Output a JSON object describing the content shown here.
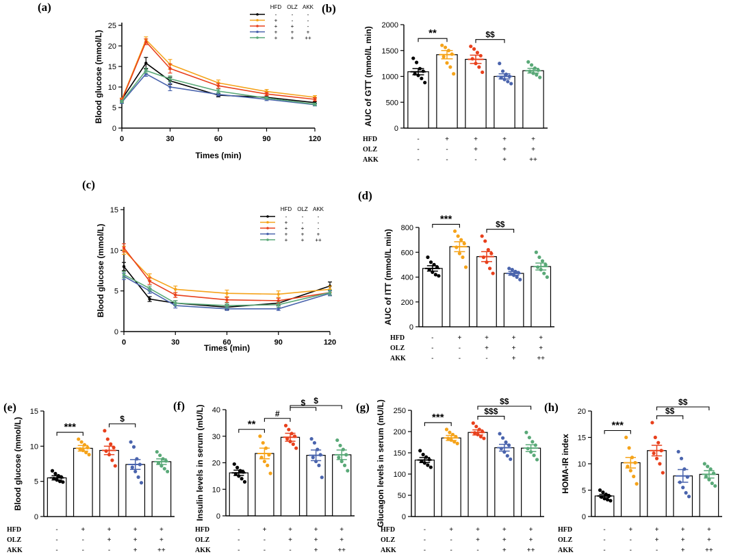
{
  "colors": {
    "HFD-/OLZ-/AKK-": "#000000",
    "HFD+": "#f5a31a",
    "HFD+OLZ+": "#e8401c",
    "HFD+OLZ+AKK+": "#4a64ad",
    "HFD+OLZ+AKK++": "#5aa978"
  },
  "treatment_table": {
    "row_labels": [
      "HFD",
      "OLZ",
      "AKK"
    ],
    "columns": [
      [
        "-",
        "-",
        "-"
      ],
      [
        "+",
        "-",
        "-"
      ],
      [
        "+",
        "+",
        "-"
      ],
      [
        "+",
        "+",
        "+"
      ],
      [
        "+",
        "+",
        "++"
      ]
    ]
  },
  "legend": {
    "headers": [
      "HFD",
      "OLZ",
      "AKK"
    ]
  },
  "chart_data": [
    {
      "panel": "(a)",
      "type": "line",
      "xlabel": "Times (min)",
      "ylabel": "Blood glucose (mmol/L)",
      "x": [
        0,
        15,
        30,
        60,
        90,
        120
      ],
      "xticks": [
        "0",
        "30",
        "60",
        "90",
        "120"
      ],
      "xlim": [
        0,
        120
      ],
      "ylim": [
        0,
        25
      ],
      "yticks": [
        "0",
        "5",
        "10",
        "15",
        "20",
        "25"
      ],
      "series": [
        {
          "name": "HFD-/OLZ-/AKK-",
          "values": [
            7.0,
            15.8,
            11.5,
            8.0,
            7.5,
            6.2
          ],
          "errors": [
            0.3,
            1.4,
            0.9,
            0.4,
            0.3,
            0.3
          ]
        },
        {
          "name": "HFD+",
          "values": [
            7.0,
            21.5,
            15.5,
            11.0,
            8.9,
            7.5
          ],
          "errors": [
            0.3,
            0.7,
            1.2,
            0.7,
            0.5,
            0.4
          ]
        },
        {
          "name": "HFD+OLZ+",
          "values": [
            6.8,
            21.0,
            14.5,
            10.3,
            8.3,
            7.0
          ],
          "errors": [
            0.3,
            0.7,
            1.1,
            0.6,
            0.4,
            0.4
          ]
        },
        {
          "name": "HFD+OLZ+AKK+",
          "values": [
            6.3,
            13.2,
            10.0,
            8.2,
            7.0,
            5.7
          ],
          "errors": [
            0.3,
            0.6,
            0.9,
            0.4,
            0.3,
            0.3
          ]
        },
        {
          "name": "HFD+OLZ+AKK++",
          "values": [
            6.5,
            14.0,
            12.0,
            9.0,
            7.3,
            5.8
          ],
          "errors": [
            0.3,
            0.6,
            0.7,
            0.5,
            0.3,
            0.3
          ]
        }
      ],
      "legend_entries": [
        [
          "-",
          "-",
          "-"
        ],
        [
          "+",
          "-",
          "-"
        ],
        [
          "+",
          "+",
          "-"
        ],
        [
          "+",
          "+",
          "+"
        ],
        [
          "+",
          "+",
          "++"
        ]
      ]
    },
    {
      "panel": "(b)",
      "type": "bar",
      "ylabel": "AUC of GTT (mmol/L min)",
      "ylim": [
        0,
        2000
      ],
      "yticks": [
        "0",
        "500",
        "1000",
        "1500",
        "2000"
      ],
      "values": [
        1090,
        1420,
        1330,
        1000,
        1110
      ],
      "errors": [
        60,
        80,
        80,
        50,
        45
      ],
      "points": [
        [
          1350,
          1270,
          1150,
          1100,
          1050,
          1020,
          960,
          880
        ],
        [
          1600,
          1560,
          1500,
          1430,
          1380,
          1260,
          1180,
          1050
        ],
        [
          1580,
          1530,
          1460,
          1400,
          1340,
          1250,
          1180,
          1080
        ],
        [
          1250,
          1100,
          1040,
          1000,
          970,
          940,
          900,
          860
        ],
        [
          1280,
          1220,
          1160,
          1120,
          1100,
          1060,
          1030,
          980
        ]
      ],
      "significance": [
        {
          "from": 0,
          "to": 1,
          "label": "**"
        },
        {
          "from": 2,
          "to": 3,
          "label": "$$"
        }
      ]
    },
    {
      "panel": "(c)",
      "type": "line",
      "xlabel": "Times (min)",
      "ylabel": "Blood glucose (mmol/L)",
      "x": [
        0,
        15,
        30,
        60,
        90,
        120
      ],
      "xticks": [
        "0",
        "30",
        "60",
        "90",
        "120"
      ],
      "xlim": [
        0,
        120
      ],
      "ylim": [
        0,
        15
      ],
      "yticks": [
        "0",
        "5",
        "10",
        "15"
      ],
      "series": [
        {
          "name": "HFD-/OLZ-/AKK-",
          "values": [
            8.0,
            4.0,
            3.5,
            3.0,
            3.5,
            5.6
          ],
          "errors": [
            0.5,
            0.3,
            0.3,
            0.3,
            0.3,
            0.5
          ]
        },
        {
          "name": "HFD+",
          "values": [
            10.0,
            6.7,
            5.2,
            4.7,
            4.6,
            5.2
          ],
          "errors": [
            0.5,
            0.4,
            0.4,
            0.4,
            0.4,
            0.4
          ]
        },
        {
          "name": "HFD+OLZ+",
          "values": [
            10.3,
            6.2,
            4.5,
            3.9,
            3.8,
            4.8
          ],
          "errors": [
            0.5,
            0.4,
            0.3,
            0.3,
            0.3,
            0.3
          ]
        },
        {
          "name": "HFD+OLZ+AKK+",
          "values": [
            6.8,
            5.0,
            3.2,
            2.8,
            2.8,
            4.7
          ],
          "errors": [
            0.4,
            0.3,
            0.3,
            0.2,
            0.2,
            0.3
          ]
        },
        {
          "name": "HFD+OLZ+AKK++",
          "values": [
            7.0,
            5.3,
            3.5,
            3.2,
            3.3,
            4.8
          ],
          "errors": [
            0.4,
            0.3,
            0.3,
            0.3,
            0.3,
            0.3
          ]
        }
      ],
      "legend_entries": [
        [
          "-",
          "-",
          "-"
        ],
        [
          "+",
          "-",
          "-"
        ],
        [
          "+",
          "+",
          "-"
        ],
        [
          "+",
          "+",
          "+"
        ],
        [
          "+",
          "+",
          "++"
        ]
      ]
    },
    {
      "panel": "(d)",
      "type": "bar",
      "ylabel": "AUC of ITT (mmol/L min)",
      "ylim": [
        0,
        800
      ],
      "yticks": [
        "0",
        "200",
        "400",
        "600",
        "800"
      ],
      "values": [
        470,
        645,
        565,
        430,
        485
      ],
      "errors": [
        22,
        40,
        40,
        15,
        28
      ],
      "points": [
        [
          560,
          520,
          500,
          480,
          460,
          440,
          420,
          410
        ],
        [
          770,
          730,
          700,
          670,
          640,
          590,
          560,
          480
        ],
        [
          730,
          690,
          620,
          590,
          560,
          520,
          470,
          430
        ],
        [
          470,
          460,
          445,
          435,
          425,
          415,
          400,
          380
        ],
        [
          600,
          560,
          530,
          500,
          480,
          460,
          430,
          400
        ]
      ],
      "significance": [
        {
          "from": 0,
          "to": 1,
          "label": "***"
        },
        {
          "from": 2,
          "to": 3,
          "label": "$$"
        }
      ]
    },
    {
      "panel": "(e)",
      "type": "bar",
      "ylabel": "Blood glucose (mmol/L)",
      "ylim": [
        0,
        15
      ],
      "yticks": [
        "0",
        "5",
        "10",
        "15"
      ],
      "values": [
        5.5,
        9.7,
        9.4,
        7.4,
        7.8
      ],
      "errors": [
        0.3,
        0.4,
        0.6,
        0.7,
        0.4
      ],
      "points": [
        [
          6.5,
          6.1,
          5.8,
          5.6,
          5.4,
          5.2,
          5.0,
          4.9
        ],
        [
          11.0,
          10.6,
          10.2,
          9.8,
          9.6,
          9.4,
          9.1,
          8.8
        ],
        [
          12.2,
          11.0,
          10.3,
          9.8,
          9.3,
          8.8,
          8.0,
          7.2
        ],
        [
          10.6,
          9.9,
          8.2,
          7.4,
          7.0,
          6.4,
          5.6,
          4.8
        ],
        [
          9.2,
          8.7,
          8.2,
          7.9,
          7.6,
          7.2,
          6.8,
          6.4
        ]
      ],
      "significance": [
        {
          "from": 0,
          "to": 1,
          "label": "***"
        },
        {
          "from": 2,
          "to": 3,
          "label": "$"
        }
      ]
    },
    {
      "panel": "(f)",
      "type": "bar",
      "ylabel": "Insulin levels in serum (mU/L)",
      "ylim": [
        0,
        40
      ],
      "yticks": [
        "0",
        "10",
        "20",
        "30",
        "40"
      ],
      "values": [
        16.2,
        23.5,
        29.6,
        22.8,
        23.0
      ],
      "errors": [
        1.0,
        2.0,
        1.5,
        2.0,
        1.8
      ],
      "points": [
        [
          19.5,
          18.2,
          17.0,
          16.5,
          15.8,
          15.0,
          14.0,
          12.8
        ],
        [
          30.0,
          27.5,
          25.5,
          23.0,
          22.0,
          20.5,
          19.0,
          16.0
        ],
        [
          34.0,
          32.5,
          31.0,
          30.0,
          29.0,
          28.0,
          27.0,
          25.5
        ],
        [
          29.0,
          27.5,
          25.0,
          23.0,
          22.0,
          20.5,
          19.0,
          14.5
        ],
        [
          28.5,
          26.5,
          25.0,
          23.0,
          22.0,
          20.5,
          19.0,
          17.0
        ]
      ],
      "significance": [
        {
          "from": 0,
          "to": 1,
          "label": "**"
        },
        {
          "from": 1,
          "to": 2,
          "label": "#"
        },
        {
          "from": 2,
          "to": 3,
          "label": "$"
        },
        {
          "from": 2,
          "to": 4,
          "label": "$"
        }
      ]
    },
    {
      "panel": "(g)",
      "type": "bar",
      "ylabel": "Glucagon levels in serum (mU/L)",
      "ylim": [
        0,
        250
      ],
      "yticks": [
        "0",
        "50",
        "100",
        "150",
        "200",
        "250"
      ],
      "values": [
        133,
        185,
        198,
        162,
        161
      ],
      "errors": [
        6,
        6,
        6,
        8,
        8
      ],
      "points": [
        [
          155,
          146,
          140,
          134,
          130,
          126,
          121,
          116
        ],
        [
          205,
          198,
          193,
          188,
          184,
          180,
          176,
          172
        ],
        [
          220,
          212,
          205,
          200,
          197,
          193,
          188,
          184
        ],
        [
          195,
          185,
          175,
          168,
          160,
          152,
          143,
          135
        ],
        [
          198,
          186,
          176,
          168,
          160,
          152,
          144,
          134
        ]
      ],
      "significance": [
        {
          "from": 0,
          "to": 1,
          "label": "***"
        },
        {
          "from": 2,
          "to": 3,
          "label": "$$$"
        },
        {
          "from": 2,
          "to": 4,
          "label": "$$"
        }
      ]
    },
    {
      "panel": "(h)",
      "type": "bar",
      "ylabel": "HOMA-IR index",
      "ylim": [
        0,
        20
      ],
      "yticks": [
        "0",
        "5",
        "10",
        "15",
        "20"
      ],
      "values": [
        3.9,
        10.2,
        12.5,
        7.7,
        8.0
      ],
      "errors": [
        0.3,
        1.0,
        1.0,
        1.2,
        0.7
      ],
      "points": [
        [
          5.0,
          4.6,
          4.2,
          3.9,
          3.7,
          3.4,
          3.2,
          3.0
        ],
        [
          15.0,
          13.0,
          11.2,
          10.2,
          9.5,
          8.7,
          7.6,
          6.2
        ],
        [
          17.8,
          15.0,
          14.0,
          12.5,
          12.0,
          11.0,
          10.0,
          8.3
        ],
        [
          12.3,
          11.0,
          9.0,
          7.5,
          6.5,
          5.5,
          4.5,
          3.8
        ],
        [
          10.0,
          9.5,
          9.0,
          8.2,
          7.6,
          7.0,
          6.3,
          5.8
        ]
      ],
      "significance": [
        {
          "from": 0,
          "to": 1,
          "label": "***"
        },
        {
          "from": 2,
          "to": 3,
          "label": "$$"
        },
        {
          "from": 2,
          "to": 4,
          "label": "$$"
        }
      ]
    }
  ]
}
